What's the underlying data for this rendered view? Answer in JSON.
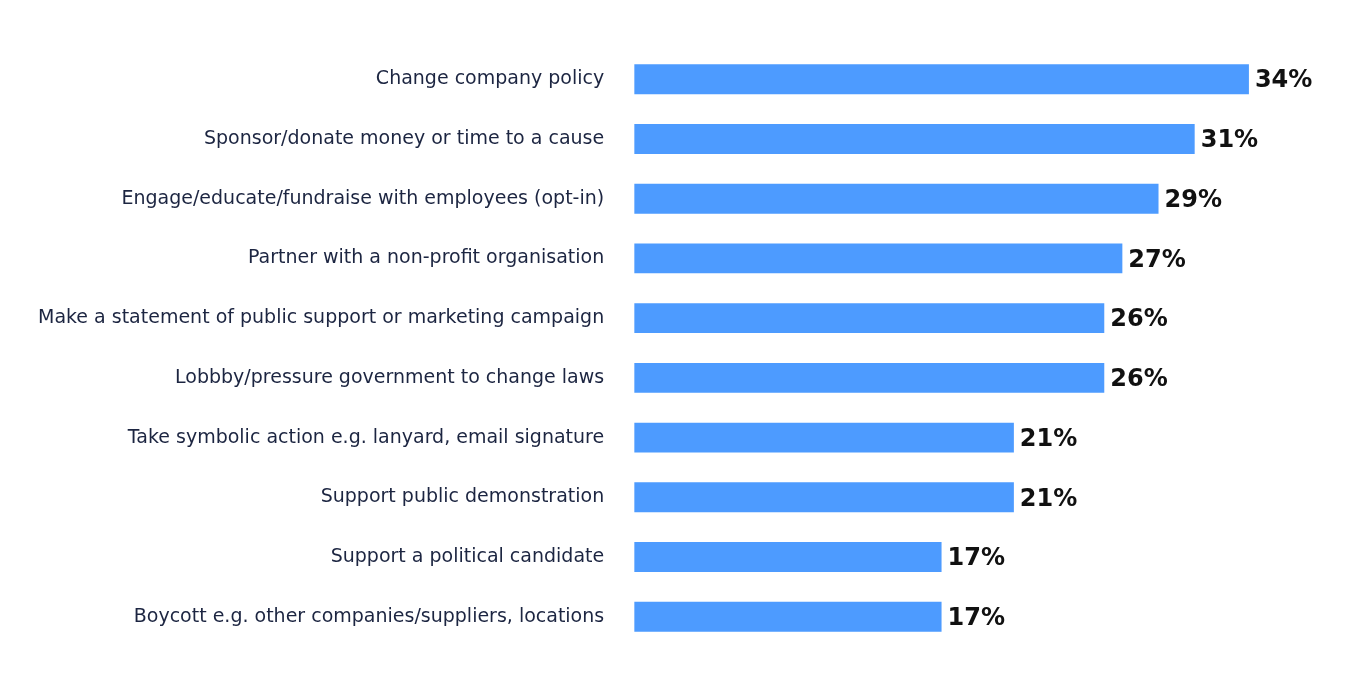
{
  "chart_data": {
    "type": "bar",
    "orientation": "horizontal",
    "categories": [
      "Change company policy",
      "Sponsor/donate money or time to a cause",
      "Engage/educate/fundraise with employees (opt-in)",
      "Partner with a non-profit organisation",
      "Make a statement of public support or marketing campaign",
      "Lobbby/pressure government to change laws",
      "Take symbolic action e.g. lanyard, email signature",
      "Support public demonstration",
      "Support a political candidate",
      "Boycott e.g. other companies/suppliers, locations"
    ],
    "values": [
      34,
      31,
      29,
      27,
      26,
      26,
      21,
      21,
      17,
      17
    ],
    "value_labels": [
      "34%",
      "31%",
      "29%",
      "27%",
      "26%",
      "26%",
      "21%",
      "21%",
      "17%",
      "17%"
    ],
    "color": "#4d9bff",
    "grid": false,
    "legend": false
  }
}
